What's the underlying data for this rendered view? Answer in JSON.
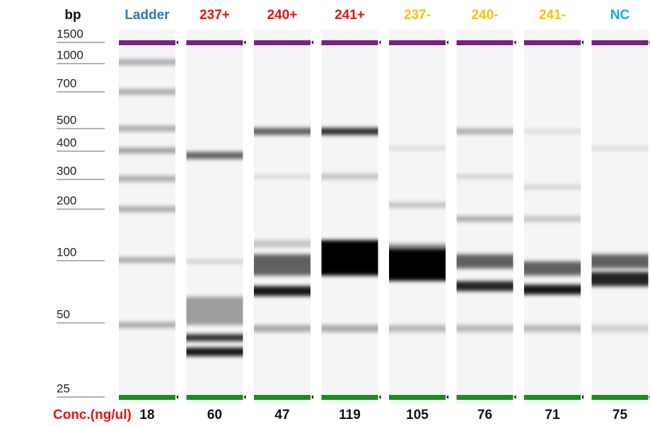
{
  "header": {
    "axis_label": "bp",
    "lanes": [
      {
        "label": "Ladder",
        "color": "#2e75b6"
      },
      {
        "label": "237+",
        "color": "#ee1111"
      },
      {
        "label": "240+",
        "color": "#ee1111"
      },
      {
        "label": "241+",
        "color": "#ee1111"
      },
      {
        "label": "237-",
        "color": "#ffc000"
      },
      {
        "label": "240-",
        "color": "#ffc000"
      },
      {
        "label": "241-",
        "color": "#ffc000"
      },
      {
        "label": "NC",
        "color": "#00b0f0"
      }
    ]
  },
  "markers": [
    "1500",
    "1000",
    "700",
    "500",
    "400",
    "300",
    "200",
    "100",
    "50",
    "25"
  ],
  "concentration": {
    "label": "Conc.(ng/ul)",
    "color": "#ee1111",
    "values": [
      "18",
      "60",
      "47",
      "119",
      "105",
      "76",
      "71",
      "75"
    ]
  }
}
